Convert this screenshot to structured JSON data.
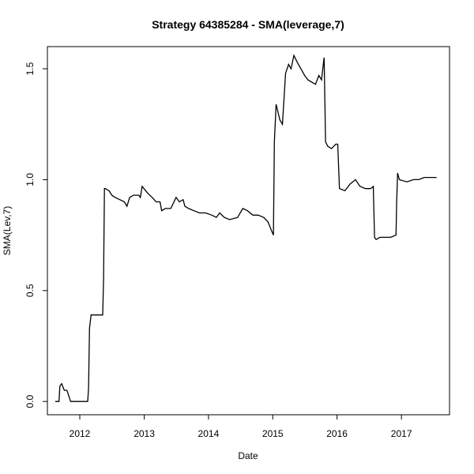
{
  "chart_data": {
    "type": "line",
    "title": "Strategy 64385284 - SMA(leverage,7)",
    "xlabel": "Date",
    "ylabel": "SMA(Lev,7)",
    "x_ticks": [
      "2012",
      "2013",
      "2014",
      "2015",
      "2016",
      "2017"
    ],
    "y_ticks": [
      "0.0",
      "0.5",
      "1.0",
      "1.5"
    ],
    "xlim": [
      "2011-07-01",
      "2017-10-01"
    ],
    "ylim": [
      -0.06,
      1.6
    ],
    "grid": false,
    "series": [
      {
        "color": "#000000",
        "x": [
          "2011-08-15",
          "2011-09-05",
          "2011-09-10",
          "2011-09-20",
          "2011-10-05",
          "2011-10-20",
          "2011-11-10",
          "2012-02-15",
          "2012-02-20",
          "2012-02-25",
          "2012-03-05",
          "2012-04-01",
          "2012-05-10",
          "2012-05-15",
          "2012-05-20",
          "2012-05-25",
          "2012-06-15",
          "2012-07-01",
          "2012-07-20",
          "2012-08-15",
          "2012-09-10",
          "2012-09-25",
          "2012-10-10",
          "2012-11-01",
          "2012-12-01",
          "2012-12-10",
          "2012-12-20",
          "2013-01-20",
          "2013-02-15",
          "2013-03-10",
          "2013-04-01",
          "2013-04-10",
          "2013-05-01",
          "2013-06-01",
          "2013-07-01",
          "2013-07-20",
          "2013-08-10",
          "2013-08-20",
          "2013-09-10",
          "2013-10-10",
          "2013-11-10",
          "2013-12-15",
          "2014-01-20",
          "2014-02-15",
          "2014-03-05",
          "2014-04-01",
          "2014-05-01",
          "2014-06-15",
          "2014-07-15",
          "2014-08-10",
          "2014-09-10",
          "2014-10-10",
          "2014-11-10",
          "2014-12-05",
          "2014-12-25",
          "2015-01-05",
          "2015-01-10",
          "2015-01-20",
          "2015-02-10",
          "2015-02-25",
          "2015-03-15",
          "2015-04-01",
          "2015-04-15",
          "2015-05-01",
          "2015-05-20",
          "2015-06-10",
          "2015-07-01",
          "2015-07-20",
          "2015-08-10",
          "2015-09-01",
          "2015-09-20",
          "2015-10-05",
          "2015-10-18",
          "2015-10-20",
          "2015-10-28",
          "2015-11-10",
          "2015-12-01",
          "2015-12-25",
          "2016-01-05",
          "2016-01-15",
          "2016-02-15",
          "2016-03-15",
          "2016-04-15",
          "2016-05-10",
          "2016-06-10",
          "2016-07-10",
          "2016-07-25",
          "2016-08-01",
          "2016-08-10",
          "2016-09-01",
          "2016-10-01",
          "2016-11-01",
          "2016-12-01",
          "2016-12-05",
          "2016-12-10",
          "2016-12-20",
          "2017-02-01",
          "2017-03-10",
          "2017-04-10",
          "2017-05-10",
          "2017-06-20",
          "2017-07-20"
        ],
        "y": [
          0.0,
          0.0,
          0.07,
          0.08,
          0.05,
          0.05,
          0.0,
          0.0,
          0.06,
          0.33,
          0.39,
          0.39,
          0.39,
          0.55,
          0.96,
          0.96,
          0.95,
          0.93,
          0.92,
          0.91,
          0.9,
          0.88,
          0.92,
          0.93,
          0.93,
          0.92,
          0.97,
          0.94,
          0.92,
          0.9,
          0.9,
          0.86,
          0.87,
          0.87,
          0.92,
          0.9,
          0.91,
          0.88,
          0.87,
          0.86,
          0.85,
          0.85,
          0.84,
          0.83,
          0.85,
          0.83,
          0.82,
          0.83,
          0.87,
          0.86,
          0.84,
          0.84,
          0.83,
          0.81,
          0.77,
          0.75,
          1.17,
          1.34,
          1.27,
          1.25,
          1.48,
          1.52,
          1.5,
          1.56,
          1.53,
          1.5,
          1.47,
          1.45,
          1.44,
          1.43,
          1.47,
          1.45,
          1.54,
          1.55,
          1.17,
          1.15,
          1.14,
          1.16,
          1.16,
          0.96,
          0.95,
          0.98,
          1.0,
          0.97,
          0.96,
          0.96,
          0.97,
          0.74,
          0.73,
          0.74,
          0.74,
          0.74,
          0.75,
          0.9,
          1.03,
          1.0,
          0.99,
          1.0,
          1.0,
          1.01,
          1.01,
          1.01
        ]
      }
    ]
  }
}
